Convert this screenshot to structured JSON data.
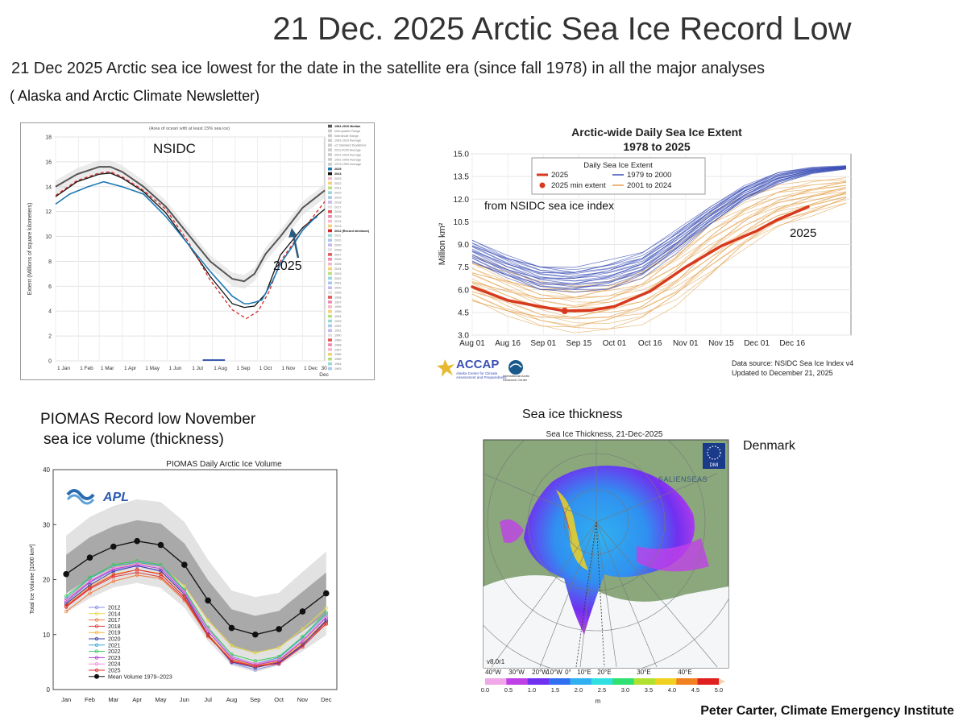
{
  "page": {
    "title": "21 Dec. 2025 Arctic Sea Ice Record Low",
    "subtitle": "21 Dec 2025 Arctic sea ice lowest for the date in the satellite era (since fall 1978) in all the major analyses",
    "source": "( Alaska and Arctic Climate Newsletter)",
    "credit": "Peter Carter, Climate Emergency Institute"
  },
  "colors": {
    "median": "#555555",
    "y2025": "#1f7ab4",
    "y2024": "#111111",
    "y2012": "#d62728",
    "arrow": "#2b5a80",
    "accap_red": "#d73a1e",
    "accap_blue": "#3b4fb5",
    "accap_orange": "#e3a14e"
  },
  "chart_data": [
    {
      "id": "nsidc",
      "type": "line",
      "overlay_label": "NSIDC",
      "note": "(Area of ocean with at least 15% sea ice)",
      "annotation": "2025",
      "ylabel": "Extent (Millions of square kilometers)",
      "ylim": [
        0,
        18
      ],
      "yticks": [
        "0",
        "2",
        "4",
        "6",
        "8",
        "10",
        "12",
        "14",
        "16",
        "18"
      ],
      "xlim": [
        1,
        365
      ],
      "xtick_labels": [
        "1 Jan",
        "1 Feb",
        "1 Mar",
        "1 Apr",
        "1 May",
        "1 Jun",
        "1 Jul",
        "1 Aug",
        "1 Sep",
        "1 Oct",
        "1 Nov",
        "1 Dec",
        "30 Dec"
      ],
      "xtick_days": [
        1,
        32,
        60,
        91,
        121,
        152,
        182,
        213,
        244,
        274,
        305,
        335,
        364
      ],
      "series": [
        {
          "name": "1981-2010 Median",
          "x": [
            1,
            30,
            60,
            75,
            91,
            120,
            150,
            180,
            210,
            240,
            256,
            270,
            285,
            305,
            335,
            365
          ],
          "values": [
            14.0,
            15.0,
            15.6,
            15.6,
            15.2,
            14.0,
            12.4,
            10.2,
            8.0,
            6.6,
            6.4,
            7.0,
            8.6,
            10.0,
            12.3,
            13.7
          ]
        },
        {
          "name": "2025",
          "x": [
            1,
            20,
            45,
            66,
            91,
            120,
            150,
            180,
            210,
            240,
            256,
            262,
            270,
            280,
            295,
            305,
            320,
            335,
            350,
            355
          ],
          "values": [
            12.6,
            13.4,
            14.0,
            14.4,
            14.0,
            13.4,
            11.6,
            9.4,
            7.2,
            5.2,
            4.6,
            4.6,
            4.7,
            4.9,
            6.5,
            7.8,
            9.1,
            10.5,
            11.4,
            11.6
          ]
        },
        {
          "name": "2024",
          "x": [
            1,
            30,
            60,
            75,
            91,
            120,
            150,
            180,
            210,
            240,
            256,
            270,
            285,
            305,
            335,
            365
          ],
          "values": [
            13.2,
            14.4,
            15.0,
            15.1,
            14.7,
            13.6,
            11.9,
            9.4,
            6.8,
            4.6,
            4.3,
            4.4,
            5.4,
            8.5,
            10.7,
            12.2
          ]
        },
        {
          "name": "2012 (Record minimum)",
          "x": [
            1,
            30,
            60,
            75,
            91,
            120,
            150,
            180,
            210,
            240,
            259,
            275,
            290,
            305,
            335,
            365
          ],
          "values": [
            13.3,
            14.5,
            15.1,
            15.2,
            14.8,
            13.7,
            12.2,
            9.6,
            6.5,
            4.1,
            3.4,
            4.0,
            5.6,
            8.0,
            10.5,
            12.8
          ]
        }
      ],
      "legend": [
        "1981-2010 Median",
        "Interquartile Range",
        "Interdecile Range",
        "1981-2010 Average",
        "±2 Standard Deviations",
        "2011-2020 Average",
        "2001-2010 Average",
        "1991-2000 Average",
        "1979-1990 Average",
        "2025",
        "2024",
        "2023",
        "2022",
        "2021",
        "2020",
        "2019",
        "2018",
        "2017",
        "2016",
        "2015",
        "2014",
        "2013",
        "2012 (Record minimum)",
        "2011",
        "2010",
        "2009",
        "2008",
        "2007",
        "2006",
        "2005",
        "2004",
        "2003",
        "2002",
        "2001",
        "2000",
        "1999",
        "1998",
        "1997",
        "1996",
        "1995",
        "1994",
        "1993",
        "1992",
        "1991",
        "1990",
        "1989",
        "1988",
        "1987",
        "1986",
        "1985",
        "1984",
        "1983"
      ]
    },
    {
      "id": "accap",
      "type": "line",
      "title": "Arctic-wide Daily Sea Ice Extent",
      "subtitle": "1978 to 2025",
      "overlay_label": "from NSIDC sea ice index",
      "annotation": "2025",
      "ylabel": "Million km²",
      "ylim": [
        3.0,
        15.0
      ],
      "yticks": [
        "3.0",
        "4.5",
        "6.0",
        "7.5",
        "9.0",
        "10.5",
        "12.0",
        "13.5",
        "15.0"
      ],
      "xtick_labels": [
        "Aug 01",
        "Aug 16",
        "Sep 01",
        "Sep 15",
        "Oct 01",
        "Oct 16",
        "Nov 01",
        "Nov 15",
        "Dec 01",
        "Dec 16"
      ],
      "legend_title": "Daily Sea Ice Extent",
      "legend": [
        "2025",
        "2025 min extent",
        "1979 to 2000",
        "2001 to 2024"
      ],
      "series_2025": {
        "name": "2025",
        "x": [
          "Aug 01",
          "Aug 16",
          "Sep 01",
          "Sep 10",
          "Sep 20",
          "Oct 01",
          "Oct 16",
          "Nov 01",
          "Nov 15",
          "Dec 01",
          "Dec 10",
          "Dec 21"
        ],
        "values": [
          6.2,
          5.3,
          4.85,
          4.6,
          4.65,
          4.9,
          5.9,
          7.5,
          8.9,
          9.9,
          10.6,
          11.5
        ]
      },
      "min_extent": {
        "x": "Sep 10",
        "value": 4.6
      },
      "band_1979_2000": {
        "name": "1979 to 2000",
        "min": [
          7.8,
          6.8,
          6.0,
          5.9,
          6.1,
          6.9,
          8.5,
          10.3,
          11.9,
          13.0,
          13.7,
          14.0
        ],
        "max": [
          9.3,
          8.3,
          7.6,
          7.4,
          7.8,
          8.4,
          9.9,
          11.5,
          12.9,
          13.8,
          14.1,
          14.2
        ]
      },
      "band_2001_2024": {
        "name": "2001 to 2024",
        "min": [
          5.2,
          4.3,
          3.6,
          3.3,
          3.5,
          4.0,
          5.2,
          6.9,
          8.7,
          10.2,
          11.0,
          11.8
        ],
        "max": [
          8.0,
          7.2,
          6.4,
          6.2,
          6.5,
          7.3,
          8.8,
          10.7,
          12.0,
          12.8,
          13.2,
          13.4
        ]
      },
      "source_lines": [
        "Data source: NSIDC Sea Ice Index v4",
        "Updated to December 21, 2025"
      ],
      "logo_text": [
        "ACCAP",
        "Alaska Center for Climate",
        "Assessment and Preparedness",
        "International Arctic",
        "Research Center"
      ]
    },
    {
      "id": "piomas",
      "type": "line",
      "overlay_title": [
        "PIOMAS Record low November",
        "sea ice volume (thickness)"
      ],
      "title": "PIOMAS Daily Arctic Ice Volume",
      "ylabel": "Total Ice Volume [1000 km³]",
      "ylim": [
        0,
        40
      ],
      "yticks": [
        "0",
        "10",
        "20",
        "30",
        "40"
      ],
      "categories": [
        "Jan",
        "Feb",
        "Mar",
        "Apr",
        "May",
        "Jun",
        "Jul",
        "Aug",
        "Sep",
        "Oct",
        "Nov",
        "Dec"
      ],
      "mean": {
        "name": "Mean Volume 1979–2023",
        "values": [
          21.0,
          24.0,
          26.0,
          27.0,
          26.3,
          22.7,
          16.2,
          11.2,
          10.0,
          11.0,
          14.2,
          17.5
        ]
      },
      "band_inner": {
        "lower": [
          17.5,
          20.3,
          22.3,
          23.2,
          22.4,
          18.8,
          12.5,
          7.8,
          6.6,
          7.7,
          10.6,
          13.7
        ],
        "upper": [
          24.5,
          27.7,
          29.7,
          30.8,
          30.2,
          26.6,
          19.9,
          14.6,
          13.4,
          14.3,
          17.8,
          21.3
        ]
      },
      "band_outer": {
        "lower": [
          14.0,
          16.6,
          18.6,
          19.4,
          18.5,
          14.9,
          8.8,
          4.4,
          3.2,
          4.4,
          7.0,
          9.9
        ],
        "upper": [
          28.0,
          31.4,
          33.4,
          34.6,
          34.1,
          30.5,
          23.6,
          18.0,
          16.8,
          17.6,
          21.4,
          25.1
        ]
      },
      "series": [
        {
          "name": "2012",
          "color": "#8e8ee8",
          "values": [
            15.8,
            19.5,
            21.7,
            22.5,
            21.5,
            17.3,
            10.0,
            4.8,
            3.6,
            4.6,
            8.0,
            12.4
          ]
        },
        {
          "name": "2014",
          "color": "#e8d84a",
          "values": [
            16.2,
            20.2,
            22.3,
            23.0,
            22.4,
            18.8,
            12.6,
            8.0,
            6.7,
            7.6,
            11.0,
            14.8
          ]
        },
        {
          "name": "2017",
          "color": "#f07a3a",
          "values": [
            14.2,
            17.5,
            19.7,
            20.8,
            20.2,
            16.2,
            9.6,
            5.4,
            4.4,
            5.4,
            8.4,
            11.9
          ]
        },
        {
          "name": "2018",
          "color": "#e03c3c",
          "values": [
            15.0,
            18.3,
            20.5,
            21.3,
            20.5,
            16.5,
            9.8,
            5.3,
            4.3,
            5.0,
            8.2,
            12.3
          ]
        },
        {
          "name": "2019",
          "color": "#f5b23a",
          "values": [
            15.4,
            18.8,
            21.0,
            21.8,
            21.1,
            16.9,
            10.1,
            5.5,
            4.4,
            5.2,
            8.5,
            12.6
          ]
        },
        {
          "name": "2020",
          "color": "#3a3aa8",
          "values": [
            15.6,
            19.0,
            21.5,
            22.5,
            21.6,
            17.3,
            10.0,
            5.0,
            4.0,
            4.9,
            8.1,
            12.6
          ]
        },
        {
          "name": "2021",
          "color": "#3aa8d8",
          "values": [
            16.6,
            20.2,
            22.4,
            23.1,
            22.5,
            18.0,
            11.1,
            6.0,
            4.7,
            5.8,
            9.4,
            13.7
          ]
        },
        {
          "name": "2022",
          "color": "#3ac85a",
          "values": [
            17.0,
            20.4,
            22.7,
            23.4,
            22.7,
            18.2,
            11.3,
            6.4,
            5.2,
            6.0,
            9.6,
            14.0
          ]
        },
        {
          "name": "2023",
          "color": "#b23ad8",
          "values": [
            16.1,
            19.6,
            21.9,
            22.7,
            22.0,
            17.6,
            10.6,
            5.7,
            4.5,
            5.3,
            8.8,
            13.1
          ]
        },
        {
          "name": "2024",
          "color": "#f08ad8",
          "values": [
            16.3,
            19.8,
            22.1,
            22.9,
            22.3,
            17.8,
            11.0,
            5.9,
            4.7,
            5.5,
            9.0,
            13.4
          ]
        },
        {
          "name": "2025",
          "color": "#e0282a",
          "values": [
            15.2,
            18.5,
            20.8,
            21.8,
            21.0,
            16.8,
            9.9,
            5.1,
            4.2,
            4.7,
            7.8,
            12.0
          ]
        }
      ]
    }
  ],
  "thickness_map": {
    "label": "Sea ice thickness",
    "title": "Sea Ice Thickness, 21-Dec-2025",
    "country_label": "Denmark",
    "logo": "DMI",
    "watermark": "SALIENSEAS",
    "version": "v8.0r1",
    "lon_labels": [
      "40°W",
      "30°W",
      "20°W",
      "10°W",
      "0°",
      "10°E",
      "20°E",
      "30°E",
      "40°E"
    ],
    "colorbar_ticks": [
      "0.0",
      "0.5",
      "1.0",
      "1.5",
      "2.0",
      "2.5",
      "3.0",
      "3.5",
      "4.0",
      "4.5",
      "5.0"
    ],
    "colorbar_unit": "m",
    "colorbar_colors": [
      "#f0a8e8",
      "#c040e8",
      "#7030f0",
      "#3070f0",
      "#30b0f0",
      "#30e0e0",
      "#30e070",
      "#b0e030",
      "#f0d020",
      "#f08020",
      "#e02020"
    ]
  }
}
